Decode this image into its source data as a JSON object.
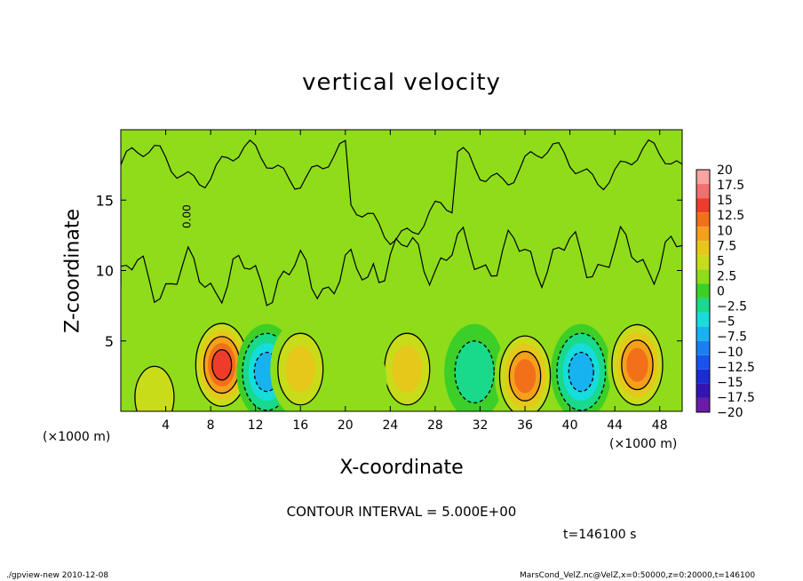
{
  "chart_data": {
    "type": "heatmap",
    "title": "vertical velocity",
    "xlabel": "X-coordinate",
    "ylabel": "Z-coordinate",
    "x_unit_left": "(×1000 m)",
    "x_unit_right": "(×1000 m)",
    "x_ticks": [
      "4",
      "8",
      "12",
      "16",
      "20",
      "24",
      "28",
      "32",
      "36",
      "40",
      "44",
      "48"
    ],
    "x_tick_values": [
      4,
      8,
      12,
      16,
      20,
      24,
      28,
      32,
      36,
      40,
      44,
      48
    ],
    "y_ticks": [
      "5",
      "10",
      "15"
    ],
    "y_tick_values": [
      5,
      10,
      15
    ],
    "xlim": [
      0,
      50
    ],
    "ylim": [
      0,
      20
    ],
    "contour_label": "0.00",
    "colorbar_labels": [
      "20",
      "17.5",
      "15",
      "12.5",
      "10",
      "7.5",
      "5",
      "2.5",
      "0",
      "−2.5",
      "−5",
      "−7.5",
      "−10",
      "−12.5",
      "−15",
      "−17.5",
      "−20"
    ],
    "colorbar_values": [
      20,
      17.5,
      15,
      12.5,
      10,
      7.5,
      5,
      2.5,
      0,
      -2.5,
      -5,
      -7.5,
      -10,
      -12.5,
      -15,
      -17.5,
      -20
    ],
    "colorbar_colors": [
      "#f9a3a3",
      "#f26f6f",
      "#ef3b2b",
      "#f2701a",
      "#f5a01a",
      "#e6c81a",
      "#c8dc1a",
      "#8fdc1a",
      "#3ccf28",
      "#19d98a",
      "#16dcdc",
      "#17b3f0",
      "#1a7ff5",
      "#1a52ef",
      "#1b2bd6",
      "#3415b4",
      "#6a1ca8"
    ],
    "features": [
      {
        "x": 9.0,
        "z": 3.3,
        "value": 15,
        "kind": "updraft"
      },
      {
        "x": 13.0,
        "z": 2.8,
        "value": -10,
        "kind": "downdraft"
      },
      {
        "x": 16.0,
        "z": 3.0,
        "value": 7.5,
        "kind": "updraft"
      },
      {
        "x": 25.5,
        "z": 3.0,
        "value": 7.5,
        "kind": "updraft"
      },
      {
        "x": 31.5,
        "z": 2.8,
        "value": -5,
        "kind": "downdraft"
      },
      {
        "x": 36.0,
        "z": 2.5,
        "value": 12.5,
        "kind": "updraft"
      },
      {
        "x": 41.0,
        "z": 2.8,
        "value": -10,
        "kind": "downdraft"
      },
      {
        "x": 46.0,
        "z": 3.3,
        "value": 12.5,
        "kind": "updraft"
      },
      {
        "x": 3.0,
        "z": 1.0,
        "value": 5,
        "kind": "updraft"
      },
      {
        "x": 21.0,
        "z": 2.0,
        "value": 2.5,
        "kind": "updraft"
      }
    ]
  },
  "contour_interval": "CONTOUR INTERVAL = 5.000E+00",
  "time_label": "t=146100 s",
  "footer_left": "./gpview-new  2010-12-08",
  "footer_right": "MarsCond_VelZ.nc@VelZ,x=0:50000,z=0:20000,t=146100"
}
